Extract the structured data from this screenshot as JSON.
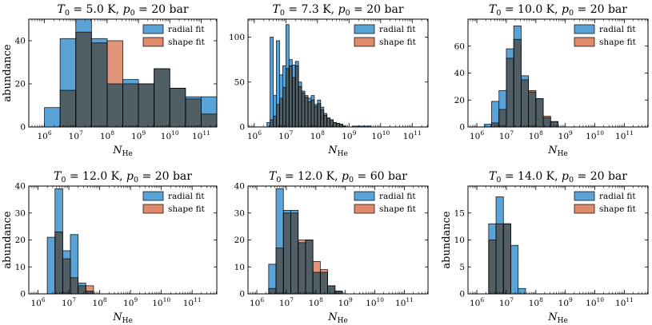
{
  "figure": {
    "name": "Helium cluster size histograms"
  },
  "colors": {
    "radial": "#5aa3d6",
    "shape": "#e0896b",
    "overlap": "#a9665e",
    "edge": "#1a1a1a"
  },
  "chart_data": [
    {
      "type": "bar",
      "title": "T0 = 5.0 K, p0 = 20 bar",
      "title_parts": {
        "T_value": "5.0",
        "p_value": "20"
      },
      "xlabel": "N_He",
      "ylabel": "abundance",
      "xscale": "log10",
      "xlim": [
        5.5,
        11.5
      ],
      "ylim": [
        0,
        50
      ],
      "yticks": [
        0,
        20,
        40
      ],
      "xticks": [
        6,
        7,
        8,
        9,
        10,
        11
      ],
      "legend": [
        "radial fit",
        "shape fit"
      ],
      "legend_position": "top-right",
      "bin_edges_log10": [
        6.0,
        6.5,
        7.0,
        7.5,
        8.0,
        8.5,
        9.0,
        9.5,
        10.0,
        10.5,
        11.0,
        11.5
      ],
      "series": [
        {
          "name": "radial fit",
          "values": [
            9,
            41,
            50,
            41,
            20,
            22,
            20,
            27,
            18,
            14,
            14
          ]
        },
        {
          "name": "shape fit",
          "values": [
            0,
            17,
            44,
            39,
            40,
            20,
            20,
            27,
            18,
            13,
            6
          ]
        }
      ]
    },
    {
      "type": "bar",
      "title": "T0 = 7.3 K, p0 = 20 bar",
      "title_parts": {
        "T_value": "7.3",
        "p_value": "20"
      },
      "xlabel": "N_He",
      "ylabel": "",
      "xscale": "log10",
      "xlim": [
        5.8,
        11.5
      ],
      "ylim": [
        0,
        120
      ],
      "yticks": [
        0,
        50,
        100
      ],
      "xticks": [
        6,
        7,
        8,
        9,
        10,
        11
      ],
      "legend": [
        "radial fit",
        "shape fit"
      ],
      "legend_position": "top-right",
      "bin_edges_log10": [
        6.4,
        6.5,
        6.6,
        6.7,
        6.8,
        6.9,
        7.0,
        7.1,
        7.2,
        7.3,
        7.4,
        7.5,
        7.6,
        7.7,
        7.8,
        7.9,
        8.0,
        8.1,
        8.2,
        8.3,
        8.4,
        8.5,
        8.6,
        8.7,
        8.8,
        8.9,
        9.0,
        9.1,
        9.3,
        9.5,
        9.7
      ],
      "series": [
        {
          "name": "radial fit",
          "values": [
            5,
            100,
            35,
            96,
            58,
            68,
            114,
            75,
            69,
            73,
            50,
            40,
            35,
            32,
            35,
            25,
            30,
            22,
            15,
            10,
            8,
            5,
            4,
            3,
            1,
            0,
            0,
            1,
            1,
            1
          ]
        },
        {
          "name": "shape fit",
          "values": [
            0,
            8,
            12,
            25,
            32,
            44,
            65,
            68,
            55,
            68,
            45,
            38,
            33,
            28,
            30,
            23,
            26,
            19,
            13,
            10,
            8,
            5,
            4,
            3,
            1,
            0,
            0,
            0,
            0,
            0
          ]
        }
      ]
    },
    {
      "type": "bar",
      "title": "T0 = 10.0 K, p0 = 20 bar",
      "title_parts": {
        "T_value": "10.0",
        "p_value": "20"
      },
      "xlabel": "N_He",
      "ylabel": "",
      "xscale": "log10",
      "xlim": [
        5.7,
        11.8
      ],
      "ylim": [
        0,
        80
      ],
      "yticks": [
        0,
        20,
        40,
        60
      ],
      "xticks": [
        6,
        7,
        8,
        9,
        10,
        11
      ],
      "legend": [
        "radial fit",
        "shape fit"
      ],
      "legend_position": "top-right",
      "bin_edges_log10": [
        6.25,
        6.5,
        6.75,
        7.0,
        7.25,
        7.5,
        7.75,
        8.0,
        8.25,
        8.5,
        8.75
      ],
      "series": [
        {
          "name": "radial fit",
          "values": [
            2,
            19,
            27,
            58,
            75,
            38,
            26,
            21,
            7,
            4
          ]
        },
        {
          "name": "shape fit",
          "values": [
            0,
            3,
            13,
            51,
            65,
            35,
            27,
            21,
            8,
            4
          ]
        }
      ]
    },
    {
      "type": "bar",
      "title": "T0 = 12.0 K, p0 = 20 bar",
      "title_parts": {
        "T_value": "12.0",
        "p_value": "20"
      },
      "xlabel": "N_He",
      "ylabel": "abundance",
      "xscale": "log10",
      "xlim": [
        5.7,
        11.8
      ],
      "ylim": [
        0,
        40
      ],
      "yticks": [
        0,
        10,
        20,
        30,
        40
      ],
      "xticks": [
        6,
        7,
        8,
        9,
        10,
        11
      ],
      "legend": [
        "radial fit",
        "shape fit"
      ],
      "legend_position": "top-right",
      "bin_edges_log10": [
        6.3,
        6.55,
        6.8,
        7.05,
        7.3,
        7.55,
        7.8,
        8.05
      ],
      "series": [
        {
          "name": "radial fit",
          "values": [
            21,
            39,
            16,
            22,
            4,
            1,
            0
          ]
        },
        {
          "name": "shape fit",
          "values": [
            0,
            23,
            13,
            6,
            3,
            3,
            0
          ]
        }
      ]
    },
    {
      "type": "bar",
      "title": "T0 = 12.0 K, p0 = 60 bar",
      "title_parts": {
        "T_value": "12.0",
        "p_value": "60"
      },
      "xlabel": "N_He",
      "ylabel": "",
      "xscale": "log10",
      "xlim": [
        5.7,
        11.8
      ],
      "ylim": [
        0,
        40
      ],
      "yticks": [
        0,
        10,
        20,
        30,
        40
      ],
      "xticks": [
        6,
        7,
        8,
        9,
        10,
        11
      ],
      "legend": [
        "radial fit",
        "shape fit"
      ],
      "legend_position": "top-right",
      "bin_edges_log10": [
        6.4,
        6.65,
        6.9,
        7.15,
        7.4,
        7.65,
        7.9,
        8.15,
        8.4,
        8.65,
        8.9,
        9.15
      ],
      "series": [
        {
          "name": "radial fit",
          "values": [
            11,
            39,
            31,
            31,
            19,
            20,
            8,
            8,
            3,
            1,
            0
          ]
        },
        {
          "name": "shape fit",
          "values": [
            2,
            17,
            30,
            30,
            20,
            20,
            12,
            9,
            3,
            1,
            0
          ]
        }
      ]
    },
    {
      "type": "bar",
      "title": "T0 = 14.0 K, p0 = 20 bar",
      "title_parts": {
        "T_value": "14.0",
        "p_value": "20"
      },
      "xlabel": "N_He",
      "ylabel": "abundance",
      "xscale": "log10",
      "xlim": [
        5.7,
        11.8
      ],
      "ylim": [
        0,
        20
      ],
      "yticks": [
        0,
        5,
        10,
        15
      ],
      "xticks": [
        6,
        7,
        8,
        9,
        10,
        11
      ],
      "legend": [
        "radial fit",
        "shape fit"
      ],
      "legend_position": "top-right",
      "bin_edges_log10": [
        6.4,
        6.65,
        6.9,
        7.15,
        7.4,
        7.65
      ],
      "series": [
        {
          "name": "radial fit",
          "values": [
            13,
            18,
            13,
            9,
            1
          ]
        },
        {
          "name": "shape fit",
          "values": [
            10,
            13,
            13,
            0,
            0
          ]
        }
      ]
    }
  ]
}
